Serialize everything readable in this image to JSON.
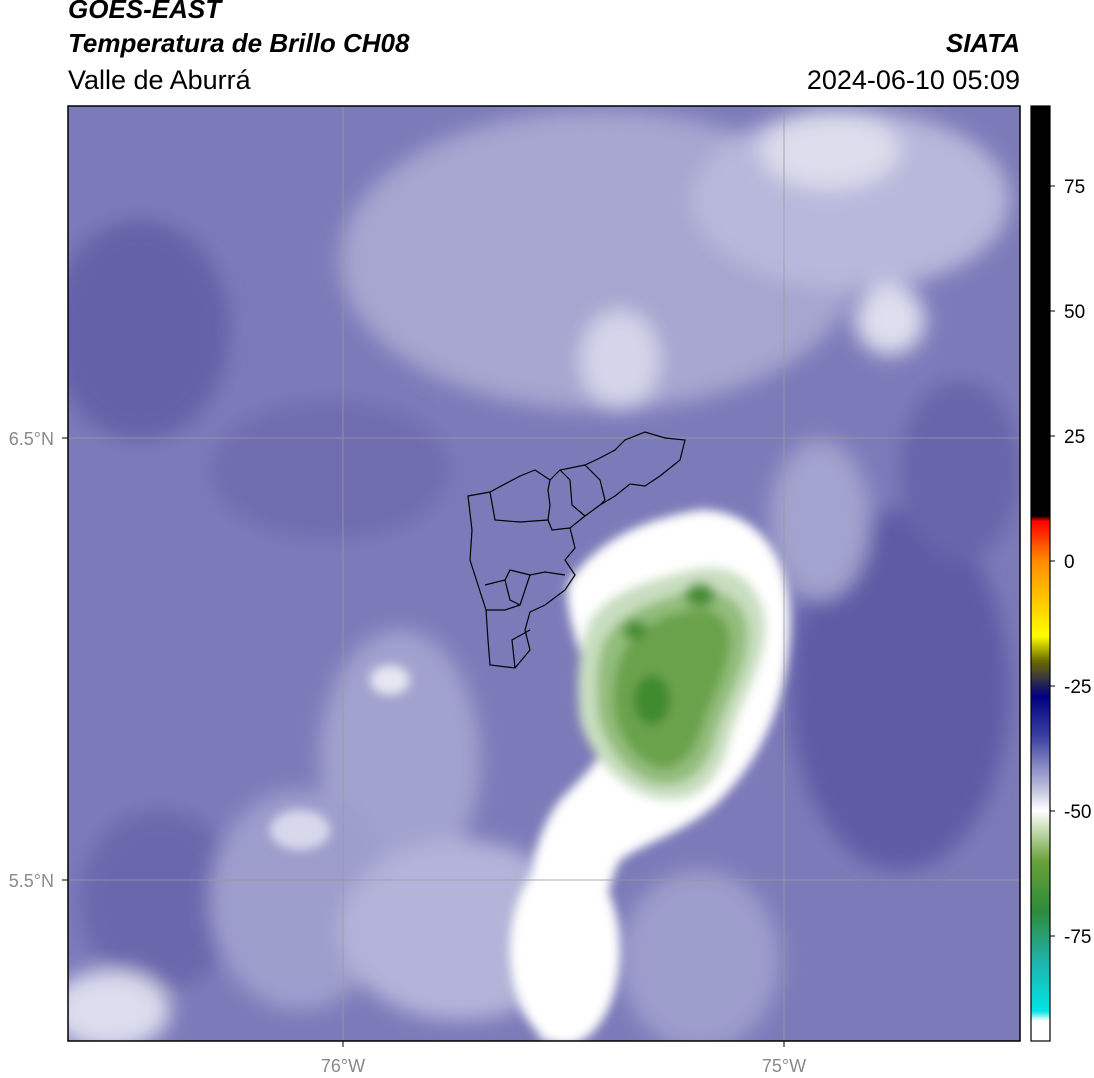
{
  "header": {
    "satellite": "GOES-EAST",
    "product": "Temperatura de Brillo CH08",
    "region": "Valle de Aburrá",
    "agency": "SIATA",
    "datetime": "2024-06-10 05:09"
  },
  "map": {
    "lat_ticks": [
      {
        "label": "6.5°N"
      },
      {
        "label": "5.5°N"
      }
    ],
    "lon_ticks": [
      {
        "label": "76°W"
      },
      {
        "label": "75°W"
      }
    ]
  },
  "colorbar": {
    "min": -96,
    "max": 91,
    "ticks": [
      {
        "value": 75,
        "label": "75"
      },
      {
        "value": 50,
        "label": "50"
      },
      {
        "value": 25,
        "label": "25"
      },
      {
        "value": 0,
        "label": "0"
      },
      {
        "value": -25,
        "label": "-25"
      },
      {
        "value": -50,
        "label": "-50"
      },
      {
        "value": -75,
        "label": "-75"
      }
    ],
    "stops": [
      {
        "value": 91,
        "color": "#000000"
      },
      {
        "value": 9,
        "color": "#000000"
      },
      {
        "value": 8,
        "color": "#ff0000"
      },
      {
        "value": 0,
        "color": "#ff8c00"
      },
      {
        "value": -10,
        "color": "#ffd700"
      },
      {
        "value": -15,
        "color": "#ffff00"
      },
      {
        "value": -20,
        "color": "#6b6b00"
      },
      {
        "value": -27,
        "color": "#000080"
      },
      {
        "value": -35,
        "color": "#3a3fa0"
      },
      {
        "value": -45,
        "color": "#b8bad8"
      },
      {
        "value": -50,
        "color": "#ffffff"
      },
      {
        "value": -60,
        "color": "#6aa23a"
      },
      {
        "value": -70,
        "color": "#2e8b3a"
      },
      {
        "value": -80,
        "color": "#20b2aa"
      },
      {
        "value": -90,
        "color": "#00e5e5"
      },
      {
        "value": -92,
        "color": "#ffffff"
      }
    ]
  },
  "colors": {
    "background_purple": "#7b7ab8",
    "cloud_white": "#ffffff",
    "cold_top_green": "#5a9a3c"
  }
}
